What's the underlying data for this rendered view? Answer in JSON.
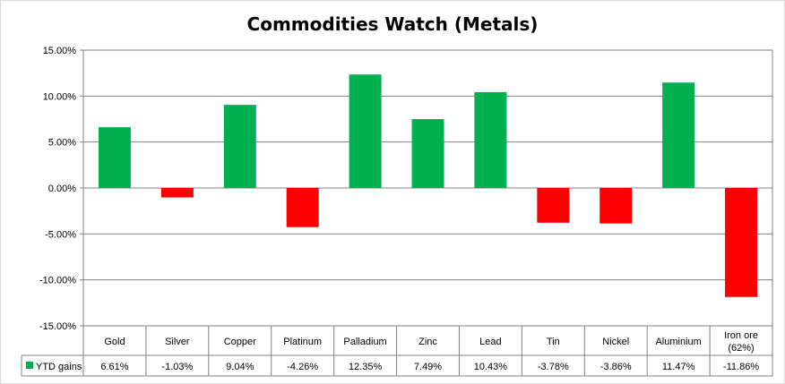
{
  "chart_data": {
    "type": "bar",
    "title": "Commodities Watch (Metals)",
    "categories": [
      "Gold",
      "Silver",
      "Copper",
      "Platinum",
      "Palladium",
      "Zinc",
      "Lead",
      "Tin",
      "Nickel",
      "Aluminium",
      "Iron ore (62%)"
    ],
    "category_lines": [
      [
        "Gold"
      ],
      [
        "Silver"
      ],
      [
        "Copper"
      ],
      [
        "Platinum"
      ],
      [
        "Palladium"
      ],
      [
        "Zinc"
      ],
      [
        "Lead"
      ],
      [
        "Tin"
      ],
      [
        "Nickel"
      ],
      [
        "Aluminium"
      ],
      [
        "Iron ore",
        "(62%)"
      ]
    ],
    "series": [
      {
        "name": "YTD gains",
        "values": [
          6.61,
          -1.03,
          9.04,
          -4.26,
          12.35,
          7.49,
          10.43,
          -3.78,
          -3.86,
          11.47,
          -11.86
        ],
        "value_labels": [
          "6.61%",
          "-1.03%",
          "9.04%",
          "-4.26%",
          "12.35%",
          "7.49%",
          "10.43%",
          "-3.78%",
          "-3.86%",
          "11.47%",
          "-11.86%"
        ]
      }
    ],
    "ylim": [
      -15,
      15
    ],
    "yticks": [
      15,
      10,
      5,
      0,
      -5,
      -10,
      -15
    ],
    "ytick_labels": [
      "15.00%",
      "10.00%",
      "5.00%",
      "0.00%",
      "-5.00%",
      "-10.00%",
      "-15.00%"
    ],
    "grid": true,
    "legend": "in data table",
    "data_table": true,
    "colors": {
      "positive": "#00B050",
      "negative": "#FF0000",
      "grid": "#808080"
    }
  }
}
